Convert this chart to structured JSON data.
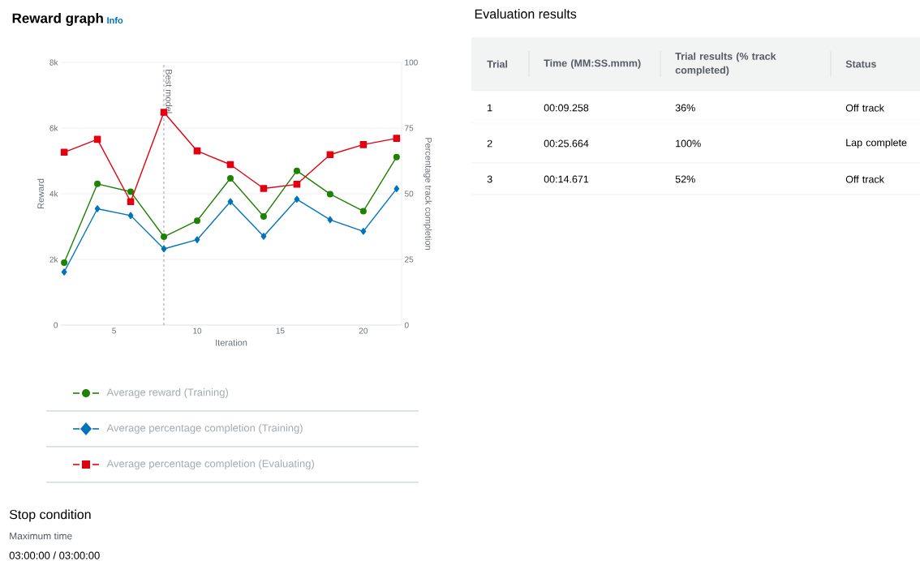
{
  "chart_data": [
    {
      "type": "line",
      "title": "Reward graph",
      "subtitle": "Info",
      "xlabel": "Iteration",
      "ylabel": "Reward",
      "y2label": "Percentage track completion",
      "x": [
        2,
        4,
        6,
        8,
        10,
        12,
        14,
        16,
        18,
        20,
        22
      ],
      "series": [
        {
          "name": "Average reward (Training)",
          "color": "#1d8102",
          "marker": "circle",
          "values": [
            1900,
            4300,
            4060,
            2690,
            3180,
            4470,
            3310,
            4700,
            3990,
            3470,
            5120
          ]
        },
        {
          "name": "Average percentage completion (Training)",
          "color": "#0073bb",
          "marker": "diamond",
          "axis": "y2",
          "values": [
            20.2,
            44.3,
            41.7,
            29.0,
            32.5,
            47.0,
            33.8,
            47.9,
            40.1,
            35.7,
            51.9
          ]
        },
        {
          "name": "Average percentage completion (Evaluating)",
          "color": "#e3000f",
          "marker": "square",
          "axis": "y2",
          "values": [
            65.8,
            70.7,
            47.0,
            81.0,
            66.3,
            61.1,
            52.0,
            53.6,
            64.9,
            68.7,
            71.1
          ]
        }
      ],
      "xlim": [
        1.8,
        22.3
      ],
      "xticks": [
        5,
        10,
        15,
        20
      ],
      "ylim": [
        0,
        8000
      ],
      "yticks": [
        0,
        {
          "value": 2000,
          "label": "2k"
        },
        {
          "value": 4000,
          "label": "4k"
        },
        {
          "value": 6000,
          "label": "6k"
        },
        {
          "value": 8000,
          "label": "8k"
        }
      ],
      "y2lim": [
        0,
        100
      ],
      "y2ticks": [
        0,
        25,
        50,
        75,
        100
      ],
      "grid": "y",
      "legend": "bottom",
      "ref_lines": [
        {
          "axis": "x",
          "value": 8,
          "label": "Best model",
          "color": "#444444",
          "line_style": "dashed"
        }
      ],
      "annotations": [
        "Stop condition",
        "Maximum time",
        "03:00:00 / 03:00:00"
      ]
    },
    {
      "type": "other",
      "title": "Evaluation results",
      "annotations": [
        "Trial",
        "Time (MM:SS.mmm)",
        "Trial results (% track completed)",
        "Status",
        "1",
        "00:09.258",
        "36%",
        "Off track",
        "2",
        "00:25.664",
        "100%",
        "Lap complete",
        "3",
        "00:14.671",
        "52%",
        "Off track"
      ]
    }
  ]
}
